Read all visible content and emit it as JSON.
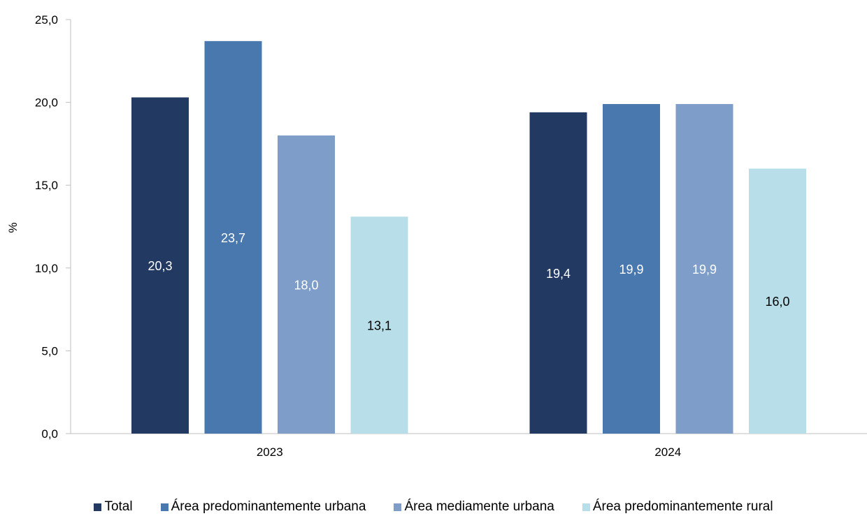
{
  "chart_data": {
    "type": "bar",
    "categories": [
      "2023",
      "2024"
    ],
    "series": [
      {
        "name": "Total",
        "values": [
          20.3,
          19.4
        ],
        "color": "#223962",
        "label_color": "#ffffff"
      },
      {
        "name": "Área predominantemente urbana",
        "values": [
          23.7,
          19.9
        ],
        "color": "#4978AF",
        "label_color": "#ffffff"
      },
      {
        "name": "Área mediamente urbana",
        "values": [
          18.0,
          19.9
        ],
        "color": "#7E9DC9",
        "label_color": "#ffffff"
      },
      {
        "name": "Área predominantemente rural",
        "values": [
          13.1,
          16.0
        ],
        "color": "#B8DFE9",
        "label_color": "#000000"
      }
    ],
    "ylabel": "%",
    "xlabel": "",
    "ylim": [
      0,
      25
    ],
    "yticks": [
      "0,0",
      "5,0",
      "10,0",
      "15,0",
      "20,0",
      "25,0"
    ],
    "ytick_values": [
      0,
      5,
      10,
      15,
      20,
      25
    ],
    "data_labels": [
      [
        "20,3",
        "19,4"
      ],
      [
        "23,7",
        "19,9"
      ],
      [
        "18,0",
        "19,9"
      ],
      [
        "13,1",
        "16,0"
      ]
    ],
    "grid": false,
    "legend_position": "bottom"
  }
}
